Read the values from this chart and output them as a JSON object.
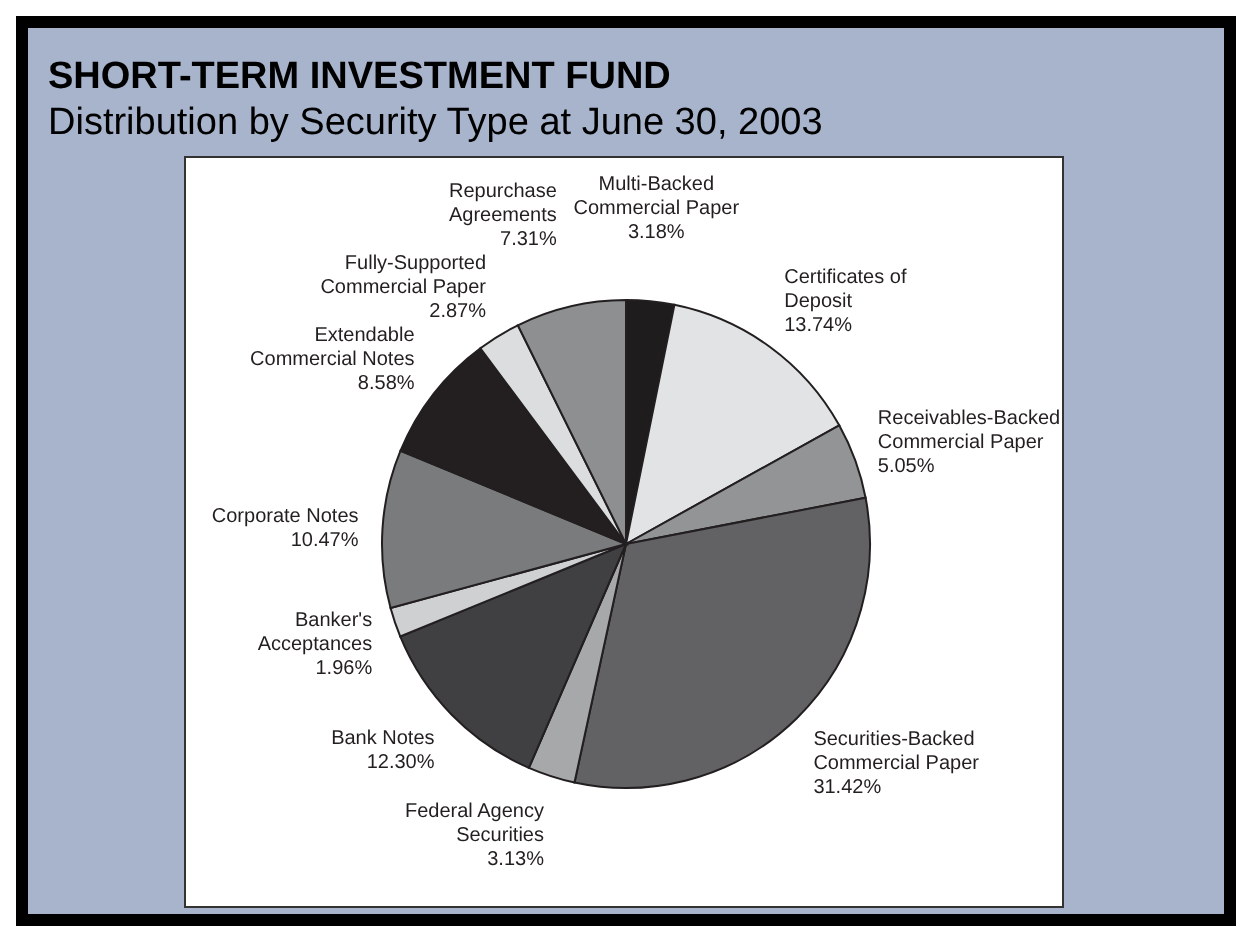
{
  "chart_data": {
    "type": "pie",
    "title": "SHORT-TERM INVESTMENT FUND",
    "subtitle": "Distribution by Security Type at June 30, 2003",
    "categories": [
      "Multi-Backed Commercial Paper",
      "Certificates of Deposit",
      "Receivables-Backed Commercial Paper",
      "Securities-Backed Commercial Paper",
      "Federal Agency Securities",
      "Bank Notes",
      "Banker's Acceptances",
      "Corporate Notes",
      "Extendable Commercial Notes",
      "Fully-Supported Commercial Paper",
      "Repurchase Agreements"
    ],
    "values": [
      3.18,
      13.74,
      5.05,
      31.42,
      3.13,
      12.3,
      1.96,
      10.47,
      8.58,
      2.87,
      7.31
    ],
    "value_labels": [
      "3.18%",
      "13.74%",
      "5.05%",
      "31.42%",
      "3.13%",
      "12.30%",
      "1.96%",
      "10.47%",
      "8.58%",
      "2.87%",
      "7.31%"
    ],
    "colors": [
      "#1e1c1d",
      "#e2e3e5",
      "#939496",
      "#626265",
      "#a7a8aa",
      "#404042",
      "#cfd0d2",
      "#7a7b7d",
      "#231f20",
      "#dcdddf",
      "#8e8f91"
    ],
    "legend": false
  }
}
